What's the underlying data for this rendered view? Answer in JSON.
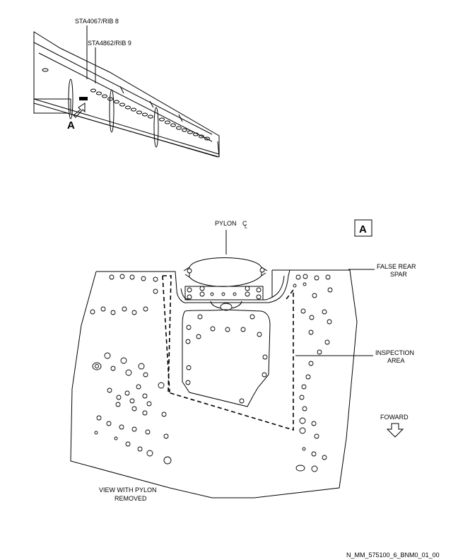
{
  "detail_view": {
    "callouts": {
      "rib8": "STA4067/RIB 8",
      "rib9": "STA4862/RIB 9",
      "view_ref": "A"
    }
  },
  "main_view": {
    "view_box_label": "A",
    "pylon_label": "PYLON",
    "centerline_symbol": "C",
    "centerline_sub": "L",
    "false_rear_spar": [
      "FALSE REAR",
      "SPAR"
    ],
    "inspection_area": [
      "INSPECTION",
      "AREA"
    ],
    "forward": "FOWARD",
    "view_note": [
      "VIEW WITH PYLON",
      "REMOVED"
    ]
  },
  "figure_id": "N_MM_575100_6_BNM0_01_00"
}
